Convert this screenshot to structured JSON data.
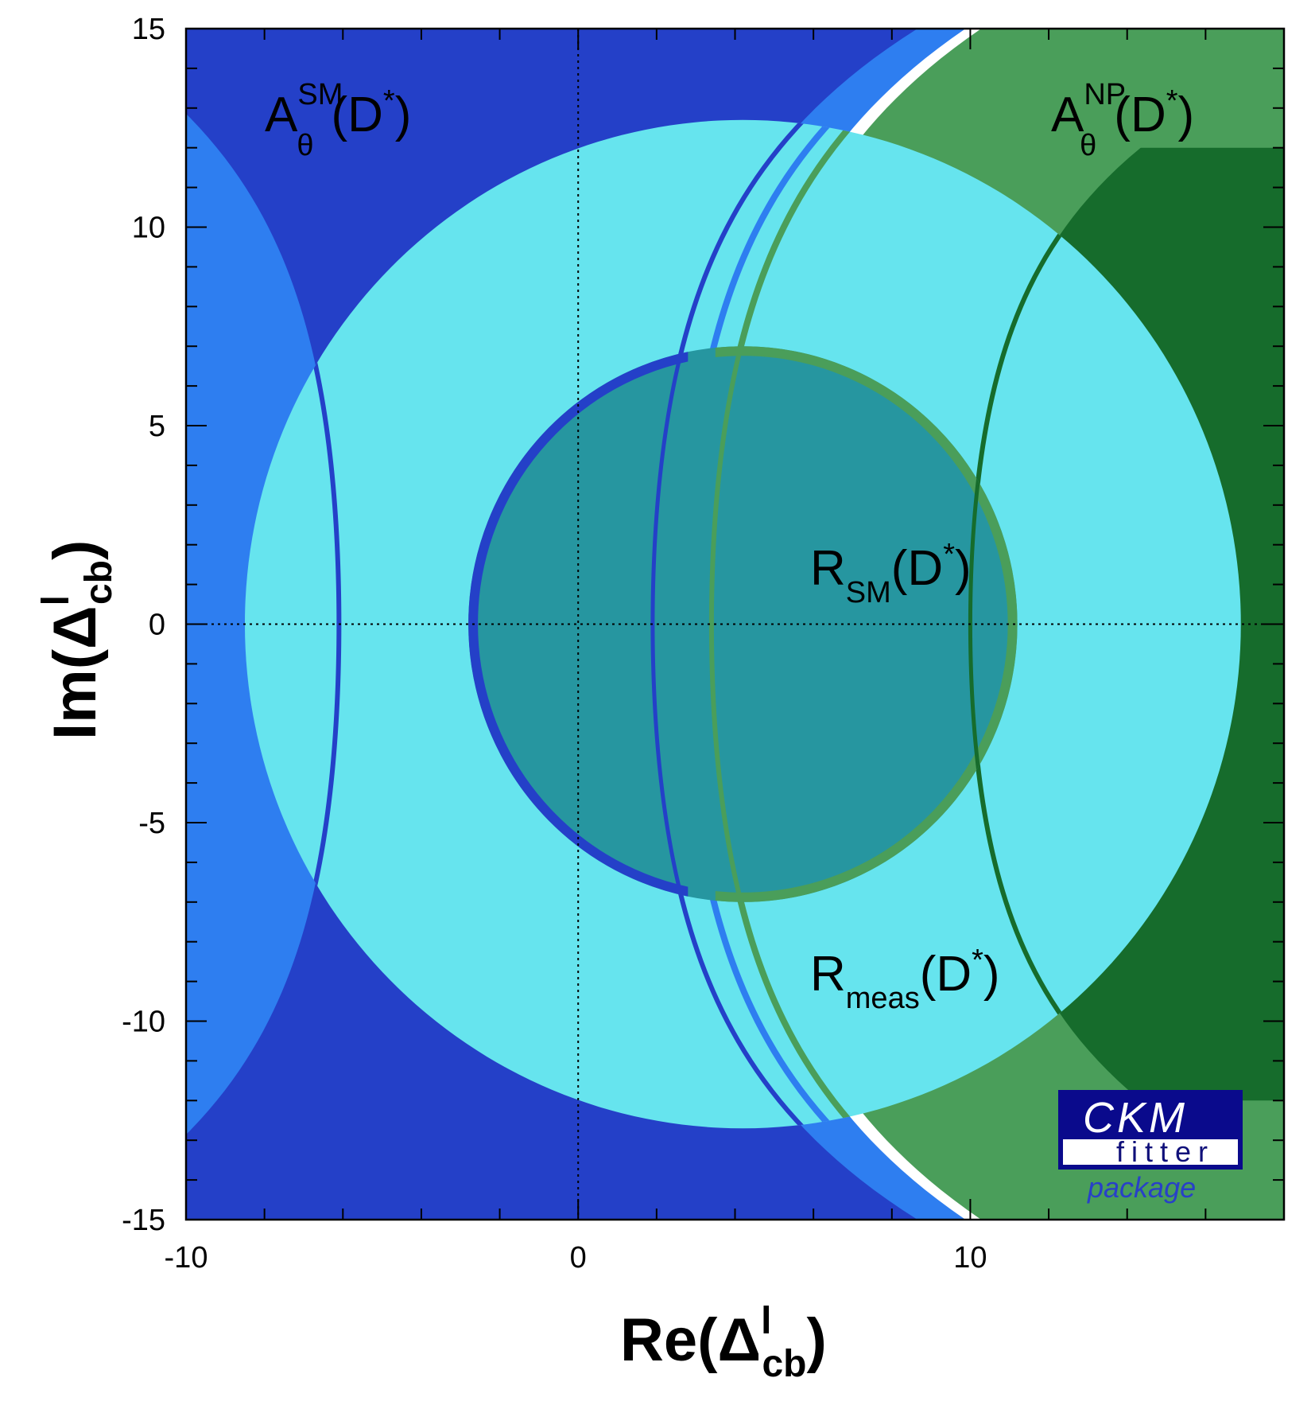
{
  "chart_data": {
    "type": "contour",
    "xlabel": "Re(Δ",
    "xlabel_sup": "l",
    "xlabel_sub": "cb",
    "xlabel_close": ")",
    "ylabel": "Im(Δ",
    "ylabel_sup": "l",
    "ylabel_sub": "cb",
    "ylabel_close": ")",
    "xlim": [
      -10,
      18
    ],
    "ylim": [
      -15,
      15
    ],
    "xticks": [
      -10,
      0,
      10
    ],
    "yticks": [
      -15,
      -10,
      -5,
      0,
      5,
      10,
      15
    ],
    "xtick_labels": [
      "-10",
      "0",
      "10"
    ],
    "ytick_labels": [
      "-15",
      "-10",
      "-5",
      "0",
      "5",
      "10",
      "15"
    ],
    "reference_lines": {
      "x": 0,
      "y": 0,
      "style": "dotted"
    },
    "regions": [
      {
        "name": "A_theta_SM",
        "kind": "hyperbolic-band",
        "vertex_left": -6.1,
        "vertex_right": 1.9,
        "color_core": "#2440c8",
        "color_outer": "#2e7ef0"
      },
      {
        "name": "A_theta_NP",
        "kind": "hyperbolic-band",
        "vertex": 3.5,
        "color_core": "#166c2c",
        "color_outer": "#4a9e5a"
      },
      {
        "name": "R_meas",
        "kind": "disk",
        "center": [
          4.2,
          0
        ],
        "radius": 12.7,
        "color": "#66e4ee"
      },
      {
        "name": "R_SM",
        "kind": "disk",
        "center": [
          4.2,
          0
        ],
        "radius": 7.0,
        "color": "#2696a0"
      }
    ],
    "annotations": {
      "a_sm": {
        "main": "A",
        "sub": "θ",
        "sup": "SM",
        "arg": "(D",
        "star": "*",
        "close": ")"
      },
      "a_np": {
        "main": "A",
        "sub": "θ",
        "sup": "NP",
        "arg": "(D",
        "star": "*",
        "close": ")"
      },
      "r_sm": {
        "main": "R",
        "sub": "SM",
        "arg": "(D",
        "star": "*",
        "close": ")"
      },
      "r_meas": {
        "main": "R",
        "sub": "meas",
        "arg": "(D",
        "star": "*",
        "close": ")"
      }
    },
    "grid": false,
    "legend": "none"
  },
  "logo": {
    "line1": "CKM",
    "line2": "fitter",
    "line3": "package"
  },
  "colors": {
    "sm_dark": "#2440c8",
    "sm_light": "#2e7ef0",
    "np_dark": "#166c2c",
    "np_light": "#4a9e5a",
    "r_meas": "#66e4ee",
    "r_sm": "#2696a0",
    "logo_bg": "#0a0a8c"
  }
}
